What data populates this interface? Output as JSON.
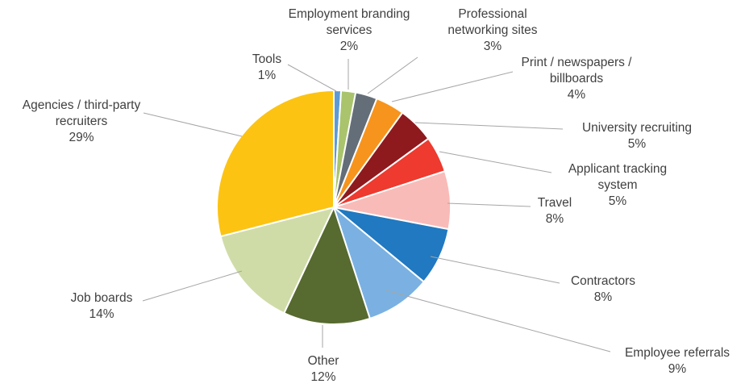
{
  "chart_data": {
    "type": "pie",
    "title": "",
    "start": "12 o'clock",
    "direction": "clockwise",
    "slices": [
      {
        "name": "Tools",
        "value": 1,
        "label": "1%",
        "color": "#5b9bd5"
      },
      {
        "name": "Employment branding services",
        "value": 2,
        "label": "2%",
        "color": "#a9c46c"
      },
      {
        "name": "Professional networking sites",
        "value": 3,
        "label": "3%",
        "color": "#636e78"
      },
      {
        "name": "Print / newspapers / billboards",
        "value": 4,
        "label": "4%",
        "color": "#f7941d"
      },
      {
        "name": "University recruiting",
        "value": 5,
        "label": "5%",
        "color": "#8e1a1e"
      },
      {
        "name": "Applicant tracking system",
        "value": 5,
        "label": "5%",
        "color": "#ee3a2f"
      },
      {
        "name": "Travel",
        "value": 8,
        "label": "8%",
        "color": "#f9bbb8"
      },
      {
        "name": "Contractors",
        "value": 8,
        "label": "8%",
        "color": "#2079c1"
      },
      {
        "name": "Employee referrals",
        "value": 9,
        "label": "9%",
        "color": "#7ab1e2"
      },
      {
        "name": "Other",
        "value": 12,
        "label": "12%",
        "color": "#576a2f"
      },
      {
        "name": "Job boards",
        "value": 14,
        "label": "14%",
        "color": "#cfdca8"
      },
      {
        "name": "Agencies / third-party recruiters",
        "value": 29,
        "label": "29%",
        "color": "#fcc313"
      }
    ],
    "label_lines": [
      [
        "Tools",
        "1%"
      ],
      [
        "Employment branding",
        "services",
        "2%"
      ],
      [
        "Professional",
        "networking sites",
        "3%"
      ],
      [
        "Print / newspapers /",
        "billboards",
        "4%"
      ],
      [
        "University recruiting",
        "5%"
      ],
      [
        "Applicant tracking",
        "system",
        "5%"
      ],
      [
        "Travel",
        "8%"
      ],
      [
        "Contractors",
        "8%"
      ],
      [
        "Employee referrals",
        "9%"
      ],
      [
        "Other",
        "12%"
      ],
      [
        "Job boards",
        "14%"
      ],
      [
        "Agencies / third-party",
        "recruiters",
        "29%"
      ]
    ]
  }
}
